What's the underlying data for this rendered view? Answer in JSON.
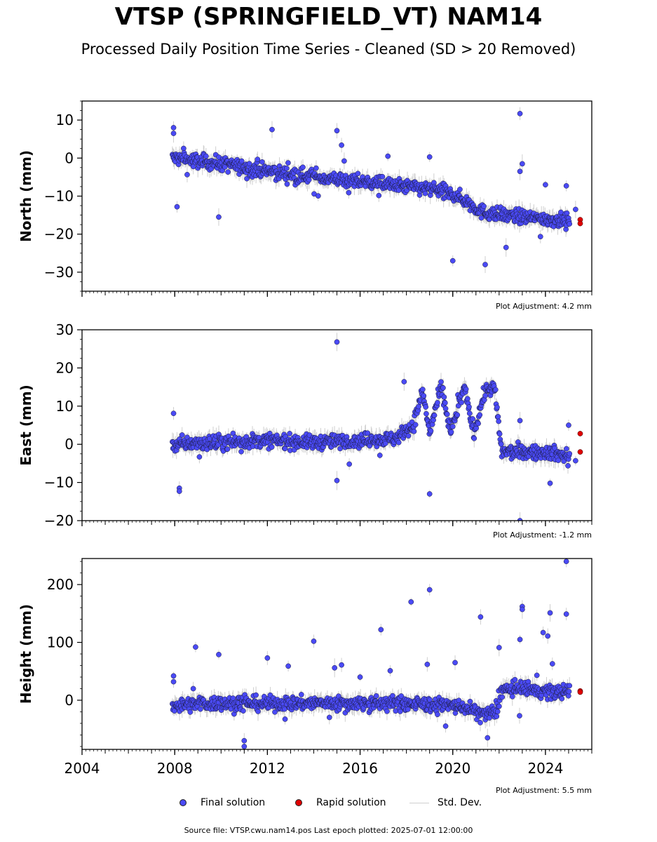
{
  "title": "VTSP (SPRINGFIELD_VT) NAM14",
  "subtitle": "Processed Daily Position Time Series - Cleaned (SD > 20 Removed)",
  "footer": "Source file: VTSP.cwu.nam14.pos  Last epoch plotted: 2025-07-01 12:00:00",
  "legend": {
    "final": "Final solution",
    "rapid": "Rapid solution",
    "stddev": "Std. Dev."
  },
  "colors": {
    "final": "#4a4af5",
    "rapid": "#e00000",
    "stddev": "#cfcfcf"
  },
  "chart_data": [
    {
      "type": "scatter",
      "ylabel": "North (mm)",
      "xlim": [
        2004,
        2026
      ],
      "ylim": [
        -35,
        15
      ],
      "yticks": [
        10,
        0,
        -10,
        -20,
        -30
      ],
      "xticks": [],
      "adjustment": "Plot Adjustment: 4.2 mm",
      "trend": [
        [
          2007.9,
          0
        ],
        [
          2010,
          -1.5
        ],
        [
          2012,
          -3.5
        ],
        [
          2014,
          -5
        ],
        [
          2016,
          -6.2
        ],
        [
          2018,
          -7.5
        ],
        [
          2019.5,
          -8.5
        ],
        [
          2020.5,
          -11
        ],
        [
          2021.2,
          -14
        ],
        [
          2022,
          -15
        ],
        [
          2024,
          -16
        ],
        [
          2025,
          -16.5
        ]
      ],
      "rapid": [
        [
          2025.5,
          -16.2
        ],
        [
          2025.5,
          -17.2
        ]
      ],
      "outliers": [
        [
          2007.95,
          8
        ],
        [
          2007.95,
          6.5
        ],
        [
          2012.2,
          7.5
        ],
        [
          2015.0,
          7.2
        ],
        [
          2015.2,
          3.4
        ],
        [
          2022.9,
          11.7
        ],
        [
          2023.0,
          -1.5
        ],
        [
          2022.9,
          -3.5
        ],
        [
          2009.9,
          -15.5
        ],
        [
          2020.0,
          -27
        ],
        [
          2021.4,
          -28
        ],
        [
          2022.3,
          -23.5
        ],
        [
          2024.0,
          -7
        ],
        [
          2024.9,
          -7.3
        ],
        [
          2025.3,
          -13.5
        ],
        [
          2017.2,
          0.5
        ],
        [
          2019.0,
          0.3
        ],
        [
          2008.1,
          -12.8
        ]
      ]
    },
    {
      "type": "scatter",
      "ylabel": "East (mm)",
      "xlim": [
        2004,
        2026
      ],
      "ylim": [
        -20,
        30
      ],
      "yticks": [
        30,
        20,
        10,
        0,
        -10,
        -20
      ],
      "xticks": [],
      "adjustment": "Plot Adjustment: -1.2 mm",
      "trend": [
        [
          2007.9,
          0
        ],
        [
          2010,
          0.5
        ],
        [
          2012,
          1
        ],
        [
          2014,
          0.5
        ],
        [
          2016,
          1
        ],
        [
          2017.5,
          1.5
        ],
        [
          2018.3,
          5
        ],
        [
          2018.7,
          14
        ],
        [
          2019.0,
          3
        ],
        [
          2019.5,
          15
        ],
        [
          2019.9,
          3
        ],
        [
          2020.5,
          15
        ],
        [
          2020.9,
          3
        ],
        [
          2021.4,
          14
        ],
        [
          2021.8,
          15
        ],
        [
          2022.1,
          -2
        ],
        [
          2023,
          -2
        ],
        [
          2024,
          -2
        ],
        [
          2025,
          -3
        ]
      ],
      "rapid": [
        [
          2025.5,
          2.8
        ],
        [
          2025.5,
          -2.0
        ]
      ],
      "outliers": [
        [
          2015.0,
          26.8
        ],
        [
          2007.95,
          8.1
        ],
        [
          2008.2,
          -11.5
        ],
        [
          2008.2,
          -12.3
        ],
        [
          2015.0,
          -9.5
        ],
        [
          2022.9,
          6.2
        ],
        [
          2022.9,
          -20
        ],
        [
          2024.2,
          -10.2
        ],
        [
          2025.3,
          -4.3
        ],
        [
          2025.0,
          5.0
        ],
        [
          2017.9,
          16.4
        ],
        [
          2019.0,
          -13
        ]
      ]
    },
    {
      "type": "scatter",
      "ylabel": "Height (mm)",
      "xlim": [
        2004,
        2026
      ],
      "ylim": [
        -85,
        245
      ],
      "yticks": [
        200,
        100,
        0
      ],
      "xticks": [
        2004,
        2008,
        2012,
        2016,
        2020,
        2024
      ],
      "adjustment": "Plot Adjustment: 5.5 mm",
      "trend": [
        [
          2007.9,
          -8
        ],
        [
          2010,
          -5
        ],
        [
          2012,
          -6
        ],
        [
          2014,
          -5
        ],
        [
          2016,
          -5
        ],
        [
          2018,
          -6
        ],
        [
          2019.5,
          -8
        ],
        [
          2020.5,
          -12
        ],
        [
          2021.3,
          -25
        ],
        [
          2021.9,
          -20
        ],
        [
          2022.1,
          18
        ],
        [
          2023,
          20
        ],
        [
          2024,
          15
        ],
        [
          2025,
          14
        ]
      ],
      "rapid": [
        [
          2025.5,
          16
        ],
        [
          2025.5,
          14
        ]
      ],
      "outliers": [
        [
          2008.9,
          92
        ],
        [
          2009.9,
          79
        ],
        [
          2012.0,
          73
        ],
        [
          2012.9,
          59
        ],
        [
          2014.0,
          102
        ],
        [
          2014.9,
          56
        ],
        [
          2015.2,
          61
        ],
        [
          2016.0,
          40
        ],
        [
          2016.9,
          122
        ],
        [
          2017.3,
          51
        ],
        [
          2018.2,
          170
        ],
        [
          2018.9,
          62
        ],
        [
          2019.0,
          191
        ],
        [
          2020.1,
          65
        ],
        [
          2021.2,
          144
        ],
        [
          2022.9,
          105
        ],
        [
          2023.0,
          162
        ],
        [
          2023.0,
          157
        ],
        [
          2023.9,
          117
        ],
        [
          2024.1,
          111
        ],
        [
          2024.2,
          151
        ],
        [
          2024.9,
          240
        ],
        [
          2024.9,
          149
        ],
        [
          2011.0,
          -80
        ],
        [
          2011.0,
          -70
        ],
        [
          2007.95,
          42
        ],
        [
          2007.95,
          32
        ],
        [
          2008.8,
          20
        ],
        [
          2022.0,
          91
        ],
        [
          2024.3,
          63
        ],
        [
          2021.5,
          -65
        ]
      ]
    }
  ]
}
